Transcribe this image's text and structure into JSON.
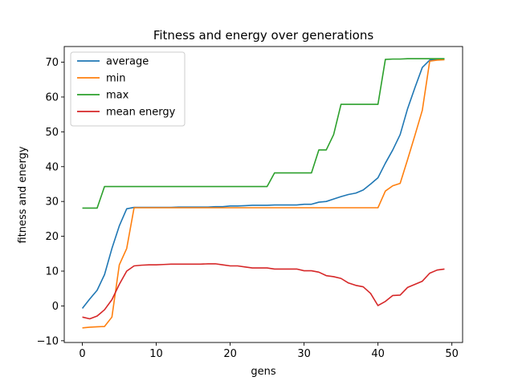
{
  "chart_data": {
    "type": "line",
    "title": "Fitness and energy over generations",
    "xlabel": "gens",
    "ylabel": "fitness and energy",
    "xlim": [
      -2.45,
      51.45
    ],
    "ylim": [
      -10.5,
      74.5
    ],
    "xticks": [
      0,
      10,
      20,
      30,
      40,
      50
    ],
    "yticks": [
      -10,
      0,
      10,
      20,
      30,
      40,
      50,
      60,
      70
    ],
    "grid": false,
    "legend_position": "upper-left",
    "x": [
      0,
      1,
      2,
      3,
      4,
      5,
      6,
      7,
      8,
      9,
      10,
      11,
      12,
      13,
      14,
      15,
      16,
      17,
      18,
      19,
      20,
      21,
      22,
      23,
      24,
      25,
      26,
      27,
      28,
      29,
      30,
      31,
      32,
      33,
      34,
      35,
      36,
      37,
      38,
      39,
      40,
      41,
      42,
      43,
      44,
      45,
      46,
      47,
      48,
      49
    ],
    "series": [
      {
        "name": "average",
        "color": "#1f77b4",
        "values": [
          -0.7,
          2.0,
          4.5,
          9.0,
          16.5,
          23.0,
          27.9,
          28.3,
          28.3,
          28.3,
          28.3,
          28.3,
          28.3,
          28.4,
          28.4,
          28.4,
          28.4,
          28.4,
          28.5,
          28.5,
          28.7,
          28.7,
          28.8,
          28.9,
          28.9,
          28.9,
          29.0,
          29.0,
          29.0,
          29.0,
          29.2,
          29.2,
          29.8,
          30.0,
          30.7,
          31.4,
          32.0,
          32.4,
          33.3,
          35.0,
          36.8,
          41.0,
          44.8,
          49.2,
          56.6,
          62.7,
          68.5,
          70.6,
          70.8,
          70.9
        ]
      },
      {
        "name": "min",
        "color": "#ff7f0e",
        "values": [
          -6.3,
          -6.1,
          -6.0,
          -5.9,
          -3.2,
          11.8,
          16.5,
          28.2,
          28.2,
          28.2,
          28.2,
          28.2,
          28.2,
          28.2,
          28.2,
          28.2,
          28.2,
          28.2,
          28.2,
          28.2,
          28.2,
          28.2,
          28.2,
          28.2,
          28.2,
          28.2,
          28.2,
          28.2,
          28.2,
          28.2,
          28.2,
          28.2,
          28.2,
          28.2,
          28.2,
          28.2,
          28.2,
          28.2,
          28.2,
          28.2,
          28.2,
          33.0,
          34.5,
          35.2,
          42.0,
          49.0,
          56.2,
          70.3,
          70.6,
          70.7
        ]
      },
      {
        "name": "max",
        "color": "#2ca02c",
        "values": [
          28.1,
          28.1,
          28.1,
          34.3,
          34.3,
          34.3,
          34.3,
          34.3,
          34.3,
          34.3,
          34.3,
          34.3,
          34.3,
          34.3,
          34.3,
          34.3,
          34.3,
          34.3,
          34.3,
          34.3,
          34.3,
          34.3,
          34.3,
          34.3,
          34.3,
          34.3,
          38.2,
          38.2,
          38.2,
          38.2,
          38.2,
          38.2,
          44.8,
          44.8,
          49.2,
          57.9,
          57.9,
          57.9,
          57.9,
          57.9,
          57.9,
          70.8,
          70.9,
          70.9,
          71.0,
          71.0,
          71.0,
          71.0,
          71.0,
          71.0
        ]
      },
      {
        "name": "mean energy",
        "color": "#d62728",
        "values": [
          -3.2,
          -3.7,
          -2.9,
          -1.1,
          1.8,
          6.2,
          10.0,
          11.5,
          11.7,
          11.8,
          11.8,
          11.9,
          12.0,
          12.0,
          12.0,
          12.0,
          12.0,
          12.1,
          12.1,
          11.8,
          11.5,
          11.5,
          11.2,
          10.9,
          10.9,
          10.9,
          10.6,
          10.6,
          10.6,
          10.6,
          10.1,
          10.1,
          9.7,
          8.7,
          8.4,
          7.9,
          6.6,
          5.9,
          5.5,
          3.6,
          0.1,
          1.3,
          3.0,
          3.1,
          5.3,
          6.2,
          7.1,
          9.4,
          10.3,
          10.6
        ]
      }
    ]
  }
}
